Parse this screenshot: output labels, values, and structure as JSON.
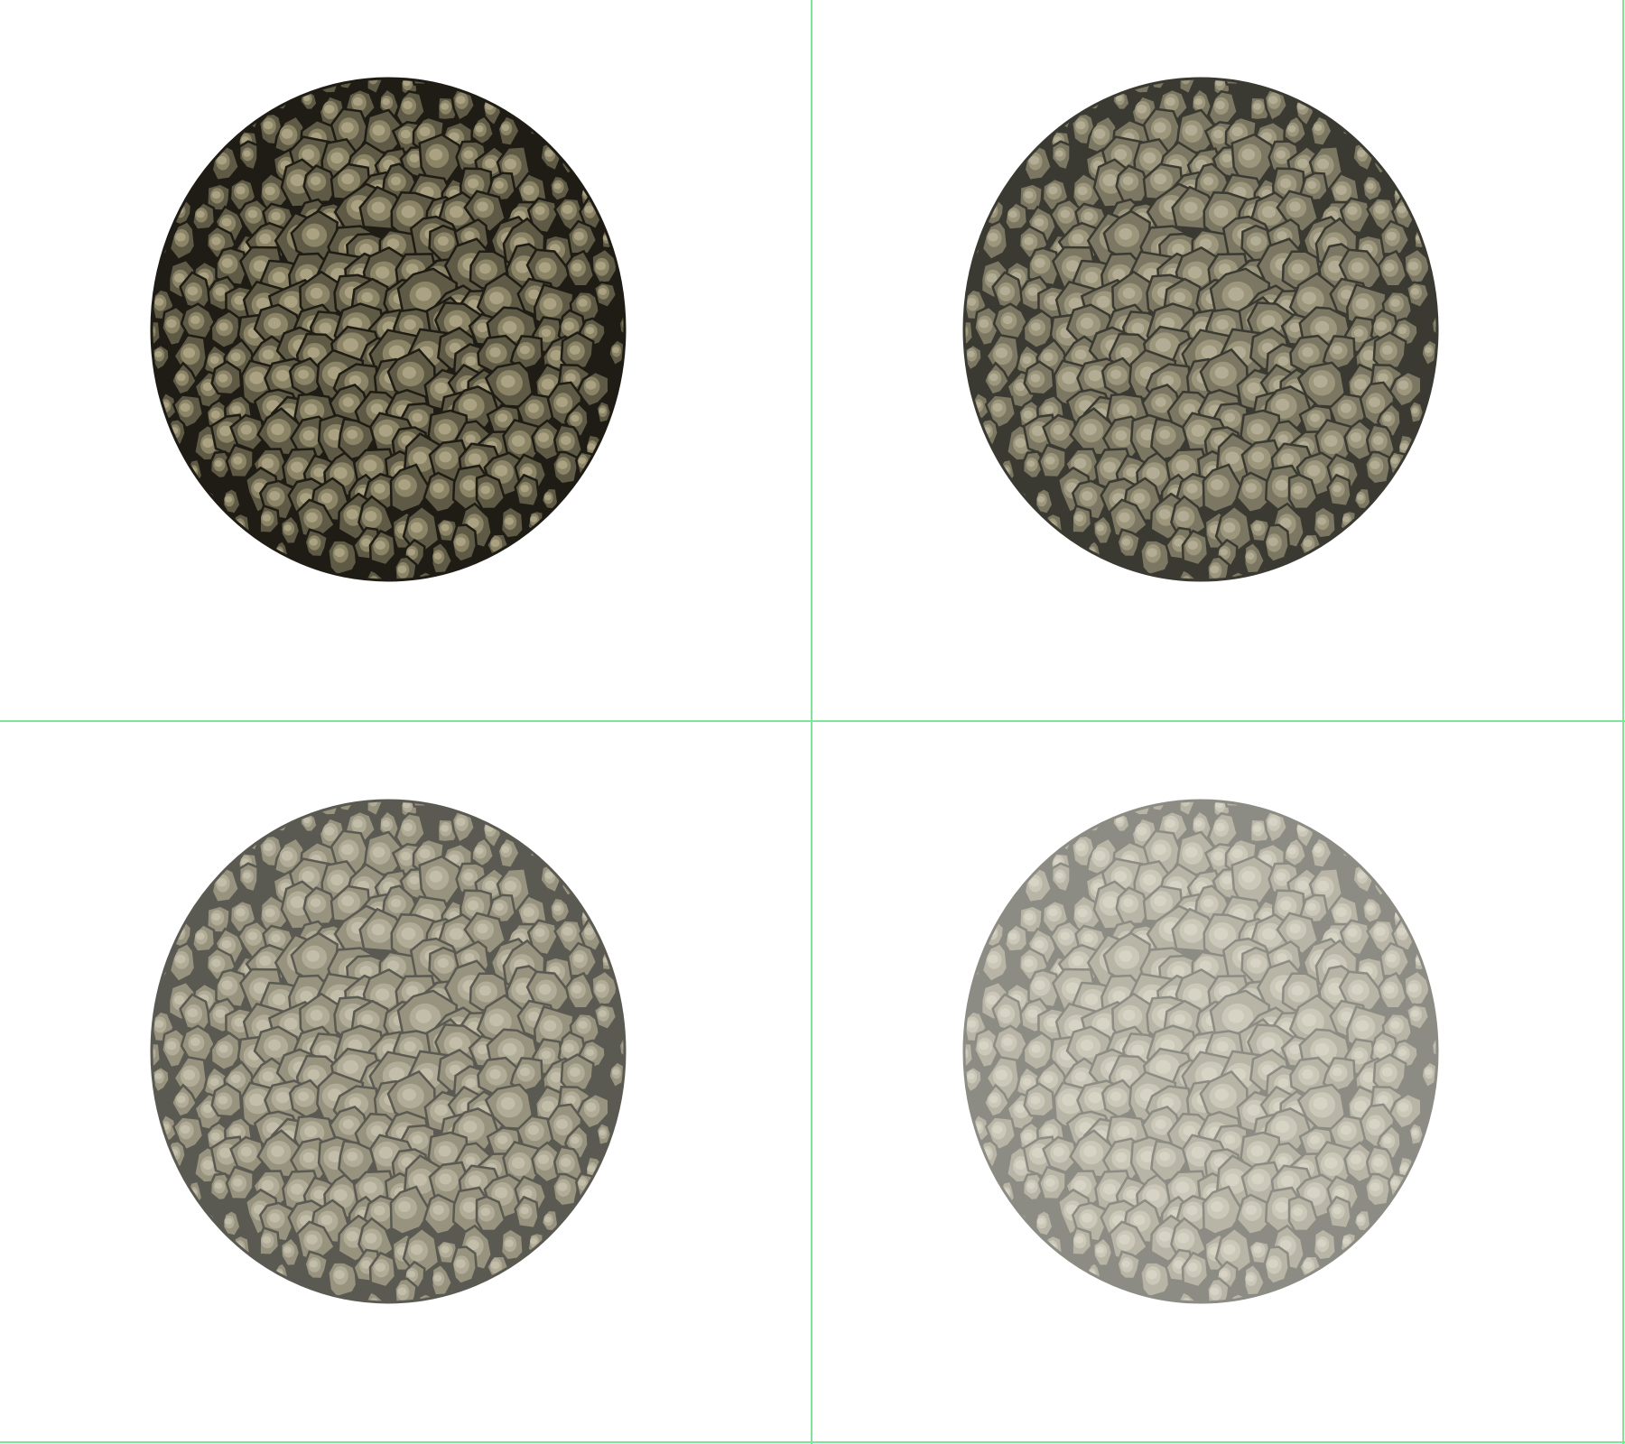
{
  "layout": "2x2-viewports",
  "divider_color": "#7fe39a",
  "background_color": "#ffffff",
  "subject": "cobblestone-sphere",
  "viewports": [
    {
      "id": "top-left",
      "opacity": 1.0,
      "outline_color": "#1e1c14",
      "base_color": "#5e5a46",
      "mid_color": "#8b8467",
      "light_color": "#aaa283"
    },
    {
      "id": "top-right",
      "opacity": 0.8,
      "outline_color": "#3a3a32",
      "base_color": "#7b7762",
      "mid_color": "#9c967d",
      "light_color": "#b3ad95"
    },
    {
      "id": "bottom-left",
      "opacity": 0.6,
      "outline_color": "#5a5a52",
      "base_color": "#97937f",
      "mid_color": "#b1ac98",
      "light_color": "#c3bea9"
    },
    {
      "id": "bottom-right",
      "opacity": 0.35,
      "outline_color": "#8c8c84",
      "base_color": "#b8b5a6",
      "mid_color": "#cbc8b9",
      "light_color": "#d7d4c6"
    }
  ]
}
